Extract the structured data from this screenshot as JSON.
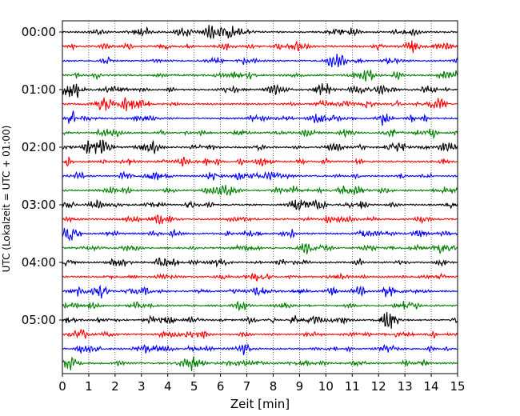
{
  "chart_data": {
    "type": "line",
    "title": "",
    "xlabel": "Zeit  [min]",
    "ylabel": "UTC (Lokalzeit = UTC + 01:00)",
    "xlim": [
      0,
      15
    ],
    "x_ticks": [
      "0",
      "1",
      "2",
      "3",
      "4",
      "5",
      "6",
      "7",
      "8",
      "9",
      "10",
      "11",
      "12",
      "13",
      "14",
      "15"
    ],
    "y_ticks": [
      "00:00",
      "01:00",
      "02:00",
      "03:00",
      "04:00",
      "05:00"
    ],
    "vertical_grid": "dotted",
    "trace_interval_minutes": 15,
    "trace_count": 24,
    "trace_colors": [
      "#000000",
      "#ff0000",
      "#0000ff",
      "#008000"
    ]
  }
}
